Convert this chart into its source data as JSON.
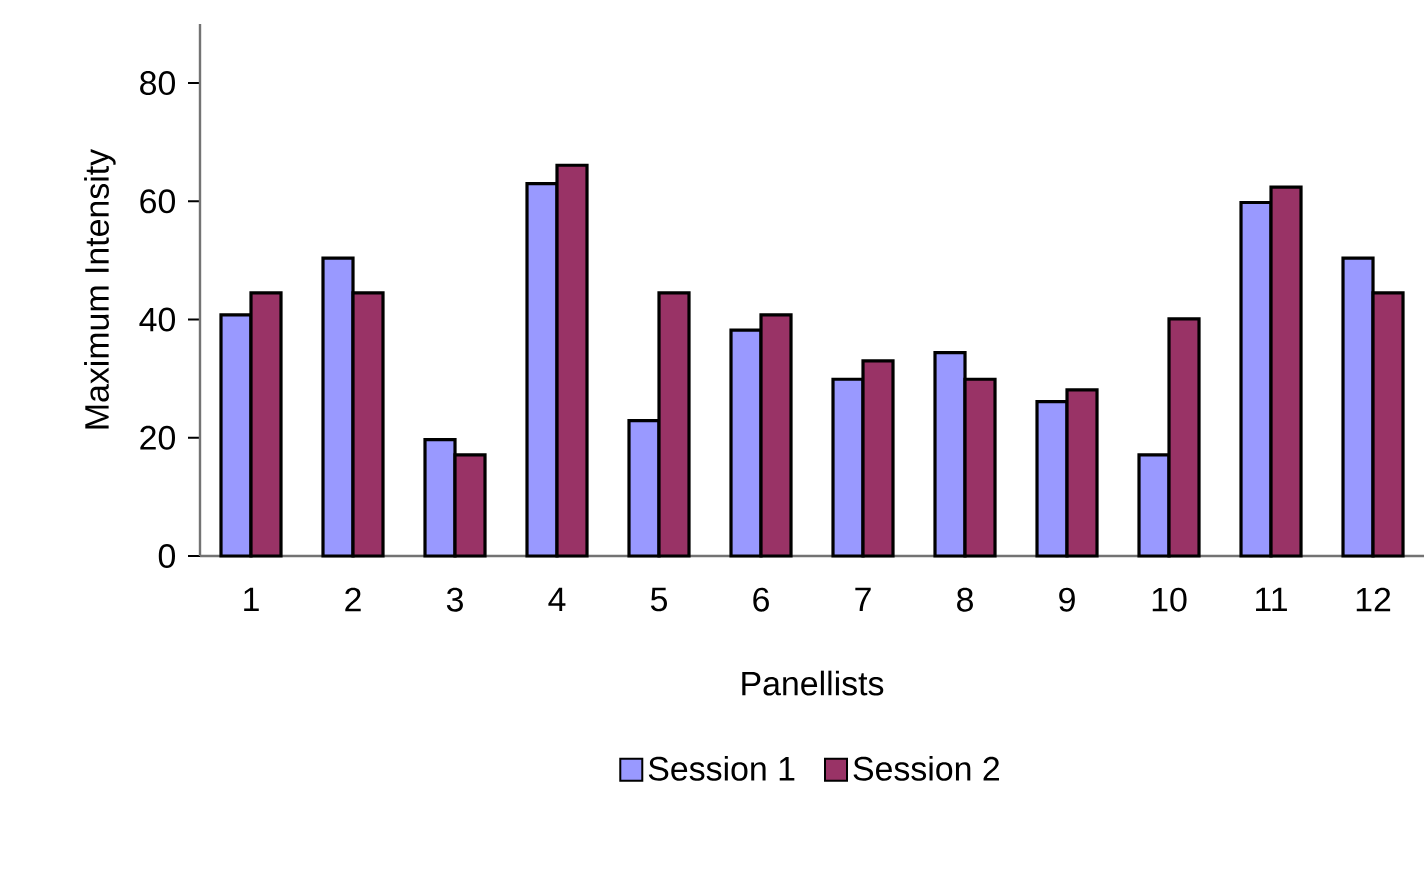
{
  "chart_data": {
    "type": "bar",
    "xlabel": "Panellists",
    "ylabel": "Maximum Intensity",
    "categories": [
      "1",
      "2",
      "3",
      "4",
      "5",
      "6",
      "7",
      "8",
      "9",
      "10",
      "11",
      "12"
    ],
    "series": [
      {
        "name": "Session 1",
        "color": "#9999ff",
        "values": [
          40.8,
          50.4,
          19.7,
          63.0,
          22.9,
          38.2,
          29.9,
          34.4,
          26.1,
          17.1,
          59.8,
          50.4
        ]
      },
      {
        "name": "Session 2",
        "color": "#993366",
        "values": [
          44.5,
          44.5,
          17.1,
          66.1,
          44.5,
          40.8,
          33.0,
          29.9,
          28.1,
          40.1,
          62.4,
          44.5
        ]
      }
    ],
    "ylim": [
      0,
      90
    ],
    "yticks": [
      0,
      20,
      40,
      60,
      80
    ],
    "grid": false,
    "legend": "bottom"
  }
}
